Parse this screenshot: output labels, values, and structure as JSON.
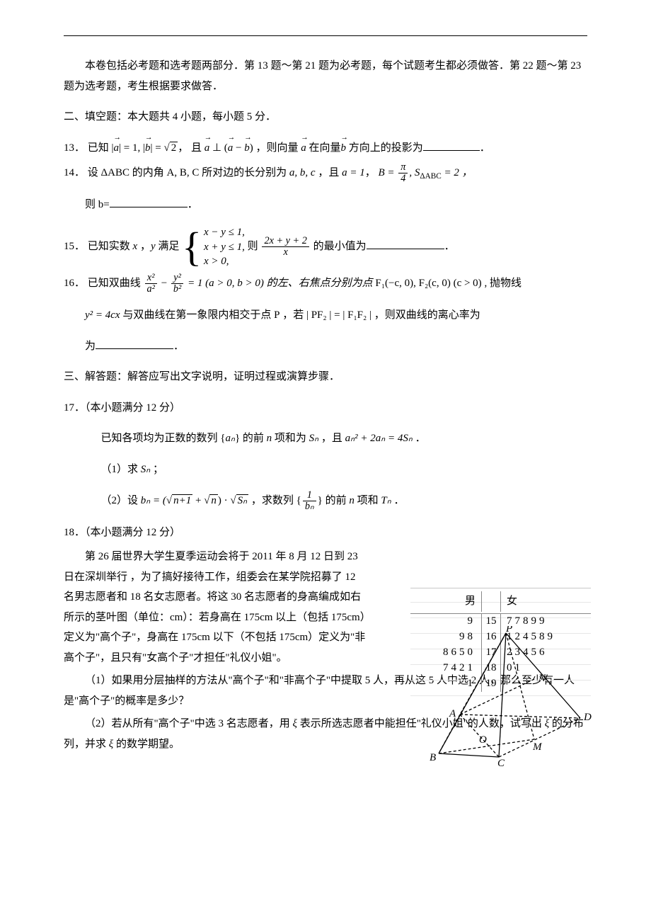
{
  "header": {
    "intro1": "本卷包括必考题和选考题两部分．第 13 题～第 21 题为必考题，每个试题考生都必须做答．第 22 题～第 23 题为选考题，考生根据要求做答．",
    "section2": "二、填空题：本大题共 4 小题，每小题 5 分．"
  },
  "q13": {
    "num": "13．",
    "pre": "已知 |",
    "a": "a",
    "mid1": "| = 1, |",
    "b": "b",
    "mid2": "| = ",
    "sqrt2": "2",
    "mid3": "， 且",
    "perp": " ⊥ (",
    "minus": " − ",
    "close": ") ，则向量",
    "at": " 在向量",
    "proj": " 方向上的投影为",
    "end": "．"
  },
  "q14": {
    "num": "14．",
    "pre": "设 Δ",
    "ABC": "ABC",
    "mid1": " 的内角 ",
    "ABCc": "A, B, C",
    "mid2": " 所对边的长分别为 ",
    "abc": "a, b, c",
    "mid3": " ，且 ",
    "a1": "a = 1",
    "comma": "，",
    "Bfrac_num": "π",
    "Bfrac_den": "4",
    "Beq": "B = ",
    "Seq": ", S",
    "Ssub": "ΔABC",
    "Seq2": " = 2 ，",
    "then": "则 b=",
    "end": "．"
  },
  "q15": {
    "num": "15．",
    "pre": "已知实数 ",
    "x": "x",
    "comma": " ，",
    "y": "y",
    "satisfy": " 满足 ",
    "l1": "x − y ≤ 1,",
    "l2": "x + y ≤ 1,",
    "l3": "x > 0,",
    "then": " 则 ",
    "frac_num": "2x + y + 2",
    "frac_den": "x",
    "min": " 的最小值为",
    "end": "．"
  },
  "q16": {
    "num": "16．",
    "pre": "已知双曲线 ",
    "xfrac_num": "x²",
    "xfrac_den": "a²",
    "minus": " − ",
    "yfrac_num": "y²",
    "yfrac_den": "b²",
    "eq": " = 1 (a > 0, b > 0) 的左、右焦点分别为点 ",
    "F1": "F₁(−c, 0), F₂(c, 0) (c > 0)",
    "para": " , 抛物线 ",
    "parab": "y² = 4cx",
    "inter": " 与双曲线在第一象限内相交于点 ",
    "P": "P",
    "if": " ，若 | ",
    "PF2": "PF₂",
    "eq2": " | = | ",
    "F1F2": "F₁F₂",
    "eq3": " | ，则双曲线的离心率为",
    "end": "．"
  },
  "section3": "三、解答题：解答应写出文字说明，证明过程或演算步骤．",
  "q17": {
    "num": "17．",
    "title": "（本小题满分 12 分）",
    "line1a": "已知各项均为正数的数列 {",
    "an": "aₙ",
    "line1b": "} 的前 ",
    "n": "n",
    "line1c": " 项和为 ",
    "Sn": "Sₙ",
    "line1d": " ，且 ",
    "eq": "aₙ² + 2aₙ = 4Sₙ",
    "line1e": " ．",
    "p1": "（1）求 ",
    "p1Sn": "Sₙ",
    "p1end": " ；",
    "p2a": "（2）设 ",
    "bn": "bₙ = (",
    "sqrt1": "n+1",
    "plus": " + ",
    "sqrt2": "n",
    "mid": ") · ",
    "sqrtSn": "Sₙ",
    "p2b": " ，求数列 {",
    "frac_num": "1",
    "frac_den": "bₙ",
    "p2c": "} 的前 ",
    "p2n": "n",
    "p2d": " 项和 ",
    "Tn": "Tₙ",
    "p2end": " ．"
  },
  "q18": {
    "num": "18．",
    "title": "（本小题满分 12 分）",
    "l1": "第 26 届世界大学生夏季运动会将于 2011 年 8 月 12 日到 23 日在深圳举行 ，为了搞好接待工作，组委会在某学院招募了 12 名男志愿者和 18 名女志愿者。将这 30 名志愿者的身高编成如右所示的茎叶图（单位：cm）：若身高在 175cm 以上（包括 175cm）定义为\"高个子\"，身高在 175cm 以下（不包括 175cm）定义为\"非高个子\"，且只有\"女高个子\"才担任\"礼仪小姐\"。",
    "p1": "（1）如果用分层抽样的方法从\"高个子\"和\"非高个子\"中提取 5 人，再从这 5 人中选 2 人，那么至少有一人是\"高个子\"的概率是多少？",
    "p2a": "（2）若从所有\"高个子\"中选 3 名志愿者，用 ",
    "xi": "ξ",
    "p2b": " 表示所选志愿者中能担任\"礼仪小姐\"的人数，试写出 ",
    "p2c": " 的分布列，并求 ",
    "p2d": " 的数学期望。"
  },
  "stemleaf": {
    "head_l": "男",
    "head_r": "女",
    "rows": [
      {
        "l": "9",
        "c": "15",
        "r": "77899"
      },
      {
        "l": "98",
        "c": "16",
        "r": "124589"
      },
      {
        "l": "8650",
        "c": "17",
        "r": "23456"
      },
      {
        "l": "7421",
        "c": "18",
        "r": "01"
      },
      {
        "l": "1",
        "c": "19",
        "r": ""
      }
    ]
  },
  "geom": {
    "P": "P",
    "N": "N",
    "A": "A",
    "D": "D",
    "O": "O",
    "M": "M",
    "B": "B",
    "C": "C"
  }
}
